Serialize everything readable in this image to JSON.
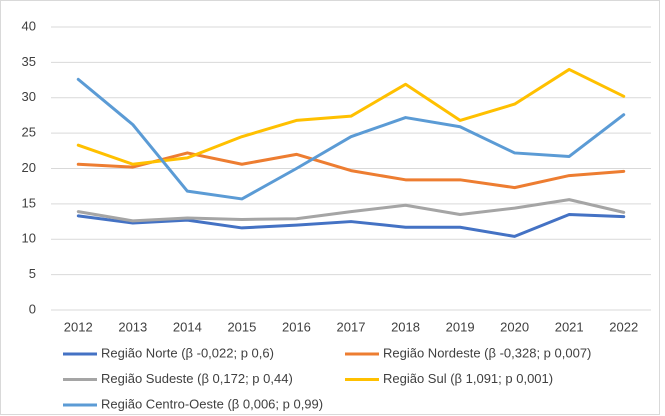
{
  "chart_data": {
    "type": "line",
    "categories": [
      "2012",
      "2013",
      "2014",
      "2015",
      "2016",
      "2017",
      "2018",
      "2019",
      "2020",
      "2021",
      "2022"
    ],
    "series": [
      {
        "name": "Região Norte (β -0,022; p 0,6)",
        "color": "#4472c4",
        "values": [
          13.3,
          12.3,
          12.7,
          11.6,
          12.0,
          12.5,
          11.7,
          11.7,
          10.4,
          13.5,
          13.2
        ]
      },
      {
        "name": "Região Nordeste (β -0,328; p 0,007)",
        "color": "#ed7d31",
        "values": [
          20.6,
          20.2,
          22.2,
          20.6,
          22.0,
          19.7,
          18.4,
          18.4,
          17.3,
          19.0,
          19.6
        ]
      },
      {
        "name": "Região Sudeste (β 0,172; p 0,44)",
        "color": "#a5a5a5",
        "values": [
          13.9,
          12.6,
          13.0,
          12.8,
          12.9,
          13.9,
          14.8,
          13.5,
          14.4,
          15.6,
          13.8
        ]
      },
      {
        "name": "Região Sul (β 1,091; p 0,001)",
        "color": "#ffc000",
        "values": [
          23.3,
          20.6,
          21.5,
          24.5,
          26.8,
          27.4,
          31.9,
          26.8,
          29.1,
          34.0,
          30.2
        ]
      },
      {
        "name": "Região Centro-Oeste (β 0,006; p 0,99)",
        "color": "#5b9bd5",
        "values": [
          32.6,
          26.2,
          16.8,
          15.7,
          20.0,
          24.5,
          27.2,
          25.9,
          22.2,
          21.7,
          27.6
        ]
      }
    ],
    "ylim": [
      0,
      40
    ],
    "yticks": [
      0,
      5,
      10,
      15,
      20,
      25,
      30,
      35,
      40
    ],
    "grid": true,
    "legend": "bottom"
  }
}
